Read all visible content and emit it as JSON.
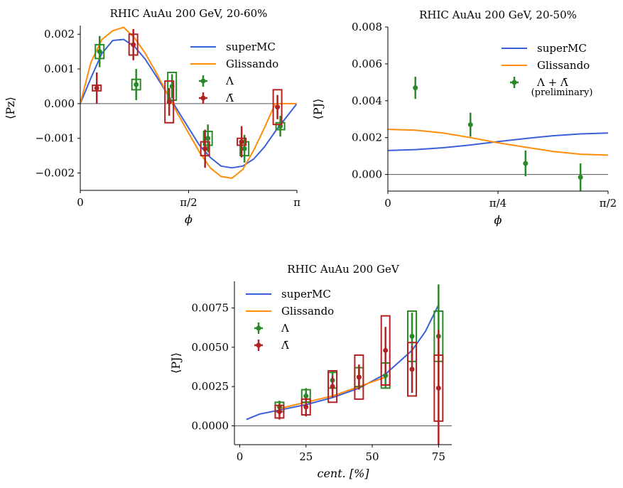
{
  "colors": {
    "supermc": "#3b5fd9",
    "glissando": "#ff8c0a",
    "lambda": "#2a8a2a",
    "antilambda": "#b22222",
    "axis": "#000000",
    "zero_line": "#555555"
  },
  "chart_data": [
    {
      "id": "p1",
      "type": "line",
      "title": "RHIC AuAu 200 GeV, 20-60%",
      "xlabel": "ϕ",
      "ylabel": "⟨Pz⟩",
      "xlim": [
        0,
        3.14159
      ],
      "ylim": [
        -0.0025,
        0.00225
      ],
      "xticks": [
        {
          "v": 0,
          "label": "0"
        },
        {
          "v": 1.5708,
          "label": "π/2"
        },
        {
          "v": 3.14159,
          "label": "π"
        }
      ],
      "yticks": [
        {
          "v": -0.002,
          "label": "−0.002"
        },
        {
          "v": -0.001,
          "label": "−0.001"
        },
        {
          "v": 0,
          "label": "0.000"
        },
        {
          "v": 0.001,
          "label": "0.001"
        },
        {
          "v": 0.002,
          "label": "0.002"
        }
      ],
      "zero_line": true,
      "legend_location": "upper right",
      "series": [
        {
          "name": "superMC",
          "kind": "line",
          "color_key": "supermc",
          "x": [
            0,
            0.157,
            0.314,
            0.471,
            0.628,
            0.785,
            0.942,
            1.099,
            1.257,
            1.414,
            1.571,
            1.728,
            1.885,
            2.042,
            2.199,
            2.356,
            2.513,
            2.67,
            2.827,
            2.985,
            3.142
          ],
          "y": [
            0,
            0.00075,
            0.00145,
            0.00182,
            0.00185,
            0.00165,
            0.00128,
            0.0008,
            0.0003,
            -0.0002,
            -0.0007,
            -0.0012,
            -0.00155,
            -0.0018,
            -0.00185,
            -0.0018,
            -0.0016,
            -0.00125,
            -0.0008,
            -0.0004,
            0
          ]
        },
        {
          "name": "Glissando",
          "kind": "line",
          "color_key": "glissando",
          "x": [
            0,
            0.157,
            0.314,
            0.471,
            0.628,
            0.785,
            0.942,
            1.099,
            1.257,
            1.414,
            1.571,
            1.728,
            1.885,
            2.042,
            2.199,
            2.356,
            2.513,
            2.67,
            2.827,
            2.985,
            3.142
          ],
          "y": [
            0,
            0.0012,
            0.00185,
            0.0021,
            0.0022,
            0.0019,
            0.00145,
            0.0009,
            0.0003,
            -0.0003,
            -0.00085,
            -0.0014,
            -0.00185,
            -0.0021,
            -0.00215,
            -0.0019,
            -0.00135,
            -0.0007,
            0,
            0,
            0
          ]
        },
        {
          "name": "Λ",
          "kind": "points",
          "color_key": "lambda",
          "x_offset": 1,
          "x": [
            0.26,
            0.79,
            1.31,
            1.83,
            2.36,
            2.88
          ],
          "y": [
            0.0015,
            0.00055,
            0.0005,
            -0.001,
            -0.0013,
            -0.00065
          ],
          "yerr": [
            0.00045,
            0.00045,
            0.00035,
            0.0004,
            0.0004,
            0.0003
          ],
          "syst": [
            0.0002,
            0.00015,
            0.0004,
            0.0002,
            0.0002,
            0.0001
          ]
        },
        {
          "name": "Λ̄",
          "kind": "points",
          "color_key": "antilambda",
          "x_offset": -1,
          "x": [
            0.26,
            0.79,
            1.31,
            1.83,
            2.36,
            2.88
          ],
          "y": [
            0.00045,
            0.0017,
            5e-05,
            -0.0013,
            -0.0011,
            -0.0001
          ],
          "yerr": [
            0.00045,
            0.00045,
            0.0004,
            0.00055,
            0.00045,
            0.00035
          ],
          "syst": [
            8e-05,
            0.0003,
            0.0006,
            0.0002,
            0.0001,
            0.0005
          ]
        }
      ]
    },
    {
      "id": "p2",
      "type": "line",
      "title": "RHIC AuAu 200 GeV, 20-50%",
      "xlabel": "ϕ",
      "ylabel": "⟨PJ⟩",
      "xlim": [
        0,
        1.5708
      ],
      "ylim": [
        -0.0009,
        0.008
      ],
      "xticks": [
        {
          "v": 0,
          "label": "0"
        },
        {
          "v": 0.7854,
          "label": "π/4"
        },
        {
          "v": 1.5708,
          "label": "π/2"
        }
      ],
      "yticks": [
        {
          "v": 0,
          "label": "0.000"
        },
        {
          "v": 0.002,
          "label": "0.002"
        },
        {
          "v": 0.004,
          "label": "0.004"
        },
        {
          "v": 0.006,
          "label": "0.006"
        },
        {
          "v": 0.008,
          "label": "0.008"
        }
      ],
      "zero_line": true,
      "legend_location": "upper right",
      "legend_note": "(preliminary)",
      "series": [
        {
          "name": "superMC",
          "kind": "line",
          "color_key": "supermc",
          "x": [
            0,
            0.196,
            0.393,
            0.589,
            0.785,
            0.982,
            1.178,
            1.374,
            1.571
          ],
          "y": [
            0.0013,
            0.00135,
            0.00145,
            0.0016,
            0.00178,
            0.00195,
            0.0021,
            0.0022,
            0.00225
          ]
        },
        {
          "name": "Glissando",
          "kind": "line",
          "color_key": "glissando",
          "x": [
            0,
            0.196,
            0.393,
            0.589,
            0.785,
            0.982,
            1.178,
            1.374,
            1.571
          ],
          "y": [
            0.00245,
            0.0024,
            0.00225,
            0.002,
            0.00172,
            0.00148,
            0.00125,
            0.0011,
            0.00105
          ]
        },
        {
          "name": "Λ + Λ̄",
          "kind": "points",
          "color_key": "lambda",
          "x_offset": 0,
          "x": [
            0.196,
            0.589,
            0.982,
            1.374
          ],
          "y": [
            0.0047,
            0.0027,
            0.0006,
            -0.00015
          ],
          "yerr": [
            0.0006,
            0.00065,
            0.0007,
            0.00075
          ],
          "syst": []
        }
      ]
    },
    {
      "id": "p3",
      "type": "line",
      "title": "RHIC AuAu 200 GeV",
      "xlabel": "cent. [%]",
      "ylabel": "⟨PJ⟩",
      "xlim": [
        -2,
        80
      ],
      "ylim": [
        -0.0012,
        0.0092
      ],
      "xticks": [
        {
          "v": 0,
          "label": "0"
        },
        {
          "v": 25,
          "label": "25"
        },
        {
          "v": 50,
          "label": "50"
        },
        {
          "v": 75,
          "label": "75"
        }
      ],
      "yticks": [
        {
          "v": 0,
          "label": "0.0000"
        },
        {
          "v": 0.0025,
          "label": "0.0025"
        },
        {
          "v": 0.005,
          "label": "0.0050"
        },
        {
          "v": 0.0075,
          "label": "0.0075"
        }
      ],
      "zero_line": true,
      "legend_location": "upper left",
      "series": [
        {
          "name": "superMC",
          "kind": "line",
          "color_key": "supermc",
          "x": [
            2.5,
            7.5,
            15,
            25,
            35,
            45,
            55,
            65,
            70,
            75
          ],
          "y": [
            0.0004,
            0.00075,
            0.001,
            0.00135,
            0.0018,
            0.0024,
            0.0033,
            0.0048,
            0.006,
            0.0077
          ]
        },
        {
          "name": "Glissando",
          "kind": "line",
          "color_key": "glissando",
          "x": [
            15,
            25,
            35,
            45,
            55
          ],
          "y": [
            0.0011,
            0.0015,
            0.0019,
            0.0025,
            0.0031
          ]
        },
        {
          "name": "Λ",
          "kind": "points",
          "color_key": "lambda",
          "x_offset": 0,
          "x": [
            15,
            25,
            35,
            45,
            55,
            65,
            75
          ],
          "y": [
            0.0012,
            0.0019,
            0.0029,
            0.0031,
            0.0032,
            0.0057,
            0.0057
          ],
          "yerr": [
            0.0004,
            0.0005,
            0.0006,
            0.0007,
            0.0008,
            0.0015,
            0.0033
          ],
          "syst": [
            0.0003,
            0.0004,
            0.0005,
            0.0006,
            0.0008,
            0.0016,
            0.0016
          ]
        },
        {
          "name": "Λ̄",
          "kind": "points",
          "color_key": "antilambda",
          "x_offset": 0,
          "x": [
            15,
            25,
            35,
            45,
            55,
            65,
            75
          ],
          "y": [
            0.0009,
            0.0012,
            0.0025,
            0.0031,
            0.0048,
            0.0036,
            0.0024
          ],
          "yerr": [
            0.0005,
            0.0006,
            0.0007,
            0.0008,
            0.0015,
            0.0015,
            0.0037
          ],
          "syst": [
            0.0004,
            0.0005,
            0.001,
            0.0014,
            0.0022,
            0.0017,
            0.0021
          ]
        }
      ]
    }
  ]
}
